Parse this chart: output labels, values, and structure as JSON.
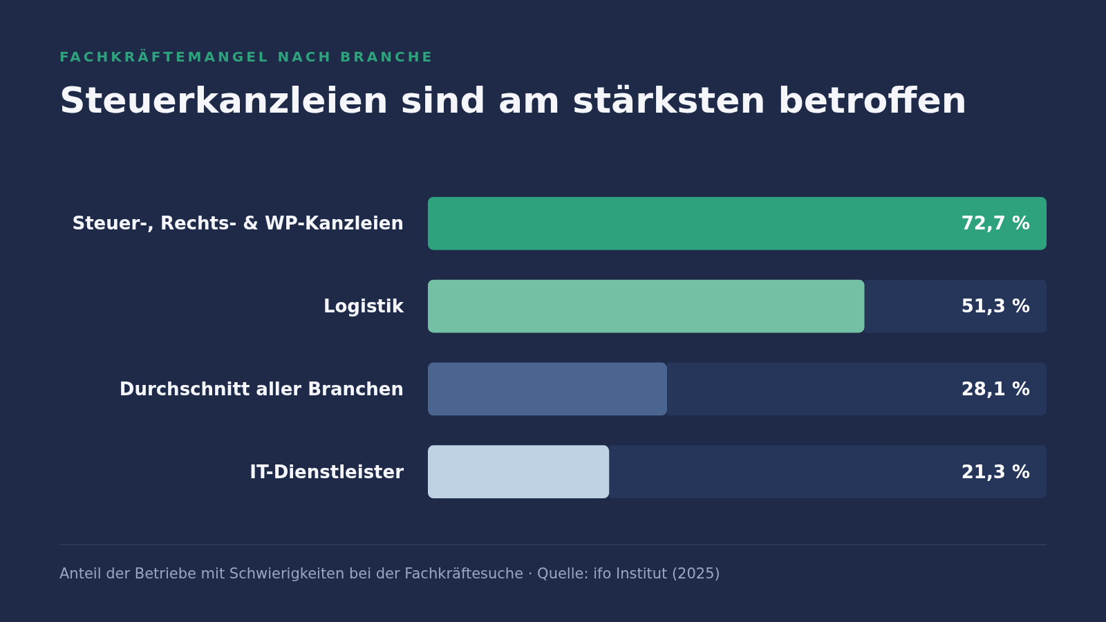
{
  "chart_data": {
    "type": "bar",
    "orientation": "horizontal",
    "subtitle": "FACHKRÄFTEMANGEL NACH BRANCHE",
    "title": "Steuerkanzleien sind am stärksten betroffen",
    "categories": [
      "Steuer-, Rechts- & WP-Kanzleien",
      "Logistik",
      "Durchschnitt aller Branchen",
      "IT-Dienstleister"
    ],
    "values": [
      72.7,
      51.3,
      28.1,
      21.3
    ],
    "colors": [
      "#2ea27c",
      "#74c0a4",
      "#4a6590",
      "#bfd2e3"
    ],
    "value_labels": [
      "72,7 %",
      "51,3 %",
      "28,1 %",
      "21,3 %"
    ],
    "xlim": [
      0,
      72.7
    ],
    "annotations": [
      "Anteil der Betriebe mit Schwierigkeiten bei der Fachkräftesuche · Quelle: ifo Institut (2025)"
    ]
  }
}
